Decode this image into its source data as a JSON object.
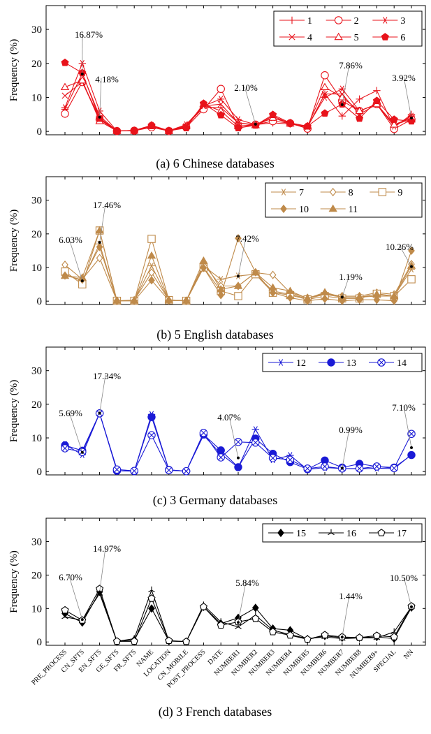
{
  "xcategories": [
    "PRE_PROCESS",
    "CN_SFTS",
    "EN_SFTS",
    "GE_SFTS",
    "FR_SFTS",
    "NAME",
    "LOCATION",
    "CN_MOBILE",
    "POST_PROCESS",
    "DATE",
    "NUMBER1",
    "NUMBER2",
    "NUMBER3",
    "NUMBER4",
    "NUMBER5",
    "NUMBER6",
    "NUMBER7",
    "NUMBER8",
    "NUMBER9+",
    "SPECIAL",
    "NN"
  ],
  "chart_data": [
    {
      "type": "line",
      "caption": "(a) 6 Chinese databases",
      "ylabel": "Frequency (%)",
      "ylim": [
        -1,
        37
      ],
      "yticks": [
        0,
        10,
        20,
        30
      ],
      "color": "#e8131b",
      "legend": {
        "placement": "top-right",
        "columns": 3
      },
      "series": [
        {
          "name": "1",
          "marker": "plus",
          "values": [
            6.5,
            17,
            4.5,
            0.1,
            0.3,
            1.5,
            0.2,
            1.8,
            7,
            7,
            2.5,
            2,
            2.5,
            2.2,
            1.2,
            11,
            4.5,
            9.5,
            12,
            1.2,
            5
          ]
        },
        {
          "name": "2",
          "marker": "circle",
          "values": [
            5.2,
            14.5,
            3.5,
            0.1,
            0.2,
            1.2,
            0.1,
            1.2,
            6.5,
            12.5,
            1.5,
            2,
            3,
            2.4,
            0.8,
            16.5,
            9,
            6,
            8,
            0.7,
            3.5
          ]
        },
        {
          "name": "3",
          "marker": "asterisk",
          "values": [
            7,
            20,
            6,
            0.1,
            0.3,
            1.8,
            0.2,
            2,
            7.5,
            9.5,
            3.5,
            2,
            4,
            2.5,
            1.5,
            10,
            12.5,
            6,
            8,
            1.5,
            4.5
          ]
        },
        {
          "name": "4",
          "marker": "x",
          "values": [
            10.5,
            14.5,
            4,
            0.1,
            0.2,
            1.5,
            0.2,
            1.5,
            7.5,
            8,
            2.5,
            1.8,
            4.5,
            2.3,
            1.2,
            11,
            11,
            5,
            8,
            2,
            4
          ]
        },
        {
          "name": "5",
          "marker": "triangle",
          "values": [
            13,
            15,
            3,
            0.1,
            0.2,
            1.5,
            0.1,
            1.5,
            8,
            6,
            1.5,
            1.8,
            4,
            2.3,
            1.5,
            13,
            10,
            6,
            8,
            2,
            3.5
          ]
        },
        {
          "name": "6",
          "marker": "pentagon",
          "values": [
            20.2,
            17.2,
            3.8,
            0.1,
            0.2,
            1.8,
            0.2,
            1,
            8.2,
            4.8,
            1,
            1.8,
            4.9,
            2.5,
            1.5,
            5.3,
            8,
            3.8,
            9,
            3.5,
            3
          ]
        }
      ],
      "annotations": [
        {
          "text": "16.87%",
          "at_index": 1,
          "value": 16.87
        },
        {
          "text": "4.18%",
          "at_index": 2,
          "value": 4.18
        },
        {
          "text": "2.10%",
          "at_index": 11,
          "value": 2.1
        },
        {
          "text": "7.86%",
          "at_index": 16,
          "value": 7.86
        },
        {
          "text": "3.92%",
          "at_index": 20,
          "value": 3.92
        }
      ]
    },
    {
      "type": "line",
      "caption": "(b) 5 English databases",
      "ylabel": "Frequency (%)",
      "ylim": [
        -1,
        37
      ],
      "yticks": [
        0,
        10,
        20,
        30
      ],
      "color": "#bf8a4a",
      "legend": {
        "placement": "top-right",
        "columns": 3
      },
      "series": [
        {
          "name": "7",
          "marker": "asterisk",
          "values": [
            8,
            6,
            17,
            0.1,
            0.2,
            10.5,
            0.3,
            0.1,
            10.5,
            6.5,
            7.5,
            8,
            3,
            2,
            0.8,
            2,
            1.2,
            1.2,
            1.5,
            1.5,
            9.5
          ]
        },
        {
          "name": "8",
          "marker": "diamond",
          "values": [
            10.8,
            6.5,
            12.8,
            0.1,
            0.3,
            8.5,
            0.3,
            0.1,
            11,
            4.5,
            4.5,
            8.5,
            7.8,
            2.5,
            1,
            2.2,
            1.5,
            1.5,
            2.5,
            2,
            11
          ]
        },
        {
          "name": "9",
          "marker": "square",
          "values": [
            8.8,
            5,
            21,
            0.1,
            0.1,
            18.5,
            0.3,
            0.1,
            10,
            3,
            1.5,
            8,
            2.5,
            1.8,
            0.5,
            1.5,
            0.8,
            0.8,
            2.2,
            1.5,
            6.5
          ]
        },
        {
          "name": "10",
          "marker": "diamondfill",
          "values": [
            7.6,
            6.4,
            16.1,
            0.1,
            0.1,
            6.2,
            0.2,
            0.1,
            9.9,
            1.8,
            18.7,
            8.6,
            2.5,
            1,
            0.1,
            0.7,
            0.1,
            0.4,
            0.4,
            0.1,
            15
          ]
        },
        {
          "name": "11",
          "marker": "trianglefill",
          "values": [
            7.5,
            7,
            21,
            0.1,
            0.1,
            13.5,
            0.3,
            0.1,
            12,
            3.5,
            4.5,
            8.5,
            4,
            3,
            0.8,
            2.6,
            1.2,
            1.2,
            2,
            1.5,
            10.5
          ]
        }
      ],
      "annotations": [
        {
          "text": "6.03%",
          "at_index": 1,
          "value": 6.03
        },
        {
          "text": "17.46%",
          "at_index": 2,
          "value": 17.46
        },
        {
          "text": "7.42%",
          "at_index": 10,
          "value": 7.42
        },
        {
          "text": "1.19%",
          "at_index": 16,
          "value": 1.19
        },
        {
          "text": "10.26%",
          "at_index": 20,
          "value": 10.26
        }
      ]
    },
    {
      "type": "line",
      "caption": "(c) 3 Germany databases",
      "ylabel": "Frequency (%)",
      "ylim": [
        -1,
        37
      ],
      "yticks": [
        0,
        10,
        20,
        30
      ],
      "color": "#1a1ad6",
      "legend": {
        "placement": "top-right",
        "columns": 3
      },
      "series": [
        {
          "name": "12",
          "marker": "asterisk",
          "values": [
            8,
            5,
            17.3,
            0.6,
            0.1,
            17,
            0.5,
            0.1,
            10.8,
            5.2,
            1.2,
            12.5,
            3.5,
            4.8,
            0.6,
            1.2,
            0.9,
            0.8,
            1,
            0.9,
            5
          ]
        },
        {
          "name": "13",
          "marker": "circlefill",
          "values": [
            7.8,
            6.2,
            17.3,
            0.2,
            0.1,
            16.2,
            0.5,
            0.1,
            11,
            6.3,
            1.3,
            9.8,
            5.3,
            2.8,
            0.7,
            3.3,
            1.2,
            2.3,
            1.5,
            1.2,
            4.9
          ]
        },
        {
          "name": "14",
          "marker": "circlex",
          "values": [
            6.9,
            5.8,
            17.3,
            0.6,
            0.2,
            10.8,
            0.4,
            0.1,
            11.5,
            4.2,
            8.8,
            8.6,
            4,
            3.5,
            0.9,
            1.5,
            0.9,
            0.9,
            1.5,
            1,
            11.2
          ]
        }
      ],
      "annotations": [
        {
          "text": "5.69%",
          "at_index": 1,
          "value": 5.69
        },
        {
          "text": "17.34%",
          "at_index": 2,
          "value": 17.34
        },
        {
          "text": "4.07%",
          "at_index": 10,
          "value": 4.07
        },
        {
          "text": "0.99%",
          "at_index": 16,
          "value": 0.99
        },
        {
          "text": "7.10%",
          "at_index": 20,
          "value": 7.1
        }
      ]
    },
    {
      "type": "line",
      "caption": "(d) 3 French databases",
      "ylabel": "Frequency (%)",
      "ylim": [
        -1,
        37
      ],
      "yticks": [
        0,
        10,
        20,
        30
      ],
      "color": "#000000",
      "legend": {
        "placement": "top-right",
        "columns": 3
      },
      "series": [
        {
          "name": "15",
          "marker": "diamondfill",
          "values": [
            8.5,
            5.8,
            15,
            0.1,
            0.6,
            10,
            0.3,
            0.1,
            10.5,
            5.5,
            7.2,
            10.2,
            4,
            3.5,
            0.8,
            1.8,
            1.3,
            1.3,
            1.5,
            1,
            10.3
          ]
        },
        {
          "name": "16",
          "marker": "tri",
          "values": [
            7.5,
            6.5,
            14.5,
            0.2,
            1,
            15.5,
            0.3,
            0.1,
            11,
            6,
            4.5,
            8,
            3.5,
            2.2,
            1,
            1.5,
            1,
            1.2,
            1.2,
            3,
            10.5
          ]
        },
        {
          "name": "17",
          "marker": "pentagon",
          "values": [
            9.5,
            6.5,
            15.9,
            0.2,
            0.2,
            13,
            0.4,
            0.1,
            10.5,
            5,
            6,
            7,
            3,
            2,
            0.8,
            2.1,
            1.5,
            1.3,
            1.9,
            1.5,
            10.7
          ]
        }
      ],
      "annotations": [
        {
          "text": "6.70%",
          "at_index": 1,
          "value": 6.7
        },
        {
          "text": "14.97%",
          "at_index": 2,
          "value": 14.97
        },
        {
          "text": "5.84%",
          "at_index": 10,
          "value": 5.84
        },
        {
          "text": "1.44%",
          "at_index": 16,
          "value": 1.44
        },
        {
          "text": "10.50%",
          "at_index": 20,
          "value": 10.5
        }
      ]
    }
  ]
}
